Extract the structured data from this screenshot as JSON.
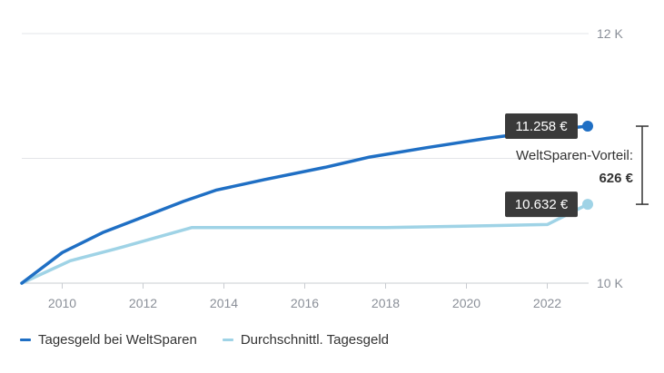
{
  "chart_data": {
    "type": "line",
    "x_ticks": [
      2010,
      2012,
      2014,
      2016,
      2018,
      2020,
      2022
    ],
    "x_range": [
      2009,
      2023
    ],
    "y_ticks": [
      {
        "value": 10000,
        "label": "10 K"
      },
      {
        "value": 12000,
        "label": "12 K"
      }
    ],
    "y_range": [
      10000,
      12000
    ],
    "grid": true,
    "legend_position": "bottom-left",
    "series": [
      {
        "name": "Tagesgeld bei WeltSparen",
        "color": "#1f6fc4",
        "points": [
          [
            2009.0,
            10000
          ],
          [
            2010.0,
            10245
          ],
          [
            2011.0,
            10405
          ],
          [
            2012.0,
            10530
          ],
          [
            2013.0,
            10655
          ],
          [
            2013.8,
            10745
          ],
          [
            2015.0,
            10830
          ],
          [
            2016.5,
            10928
          ],
          [
            2017.6,
            11010
          ],
          [
            2019.0,
            11085
          ],
          [
            2020.5,
            11160
          ],
          [
            2022.0,
            11225
          ],
          [
            2023.0,
            11258
          ]
        ],
        "end_label": "11.258 €"
      },
      {
        "name": "Durchschnittl. Tagesgeld",
        "color": "#9fd3e6",
        "points": [
          [
            2009.0,
            10000
          ],
          [
            2010.2,
            10180
          ],
          [
            2011.5,
            10290
          ],
          [
            2013.2,
            10445
          ],
          [
            2015.0,
            10445
          ],
          [
            2018.0,
            10445
          ],
          [
            2020.5,
            10460
          ],
          [
            2022.0,
            10470
          ],
          [
            2023.0,
            10632
          ]
        ],
        "end_label": "10.632 €"
      }
    ],
    "annotation": {
      "label": "WeltSparen-Vorteil:",
      "value": "626 €"
    }
  }
}
